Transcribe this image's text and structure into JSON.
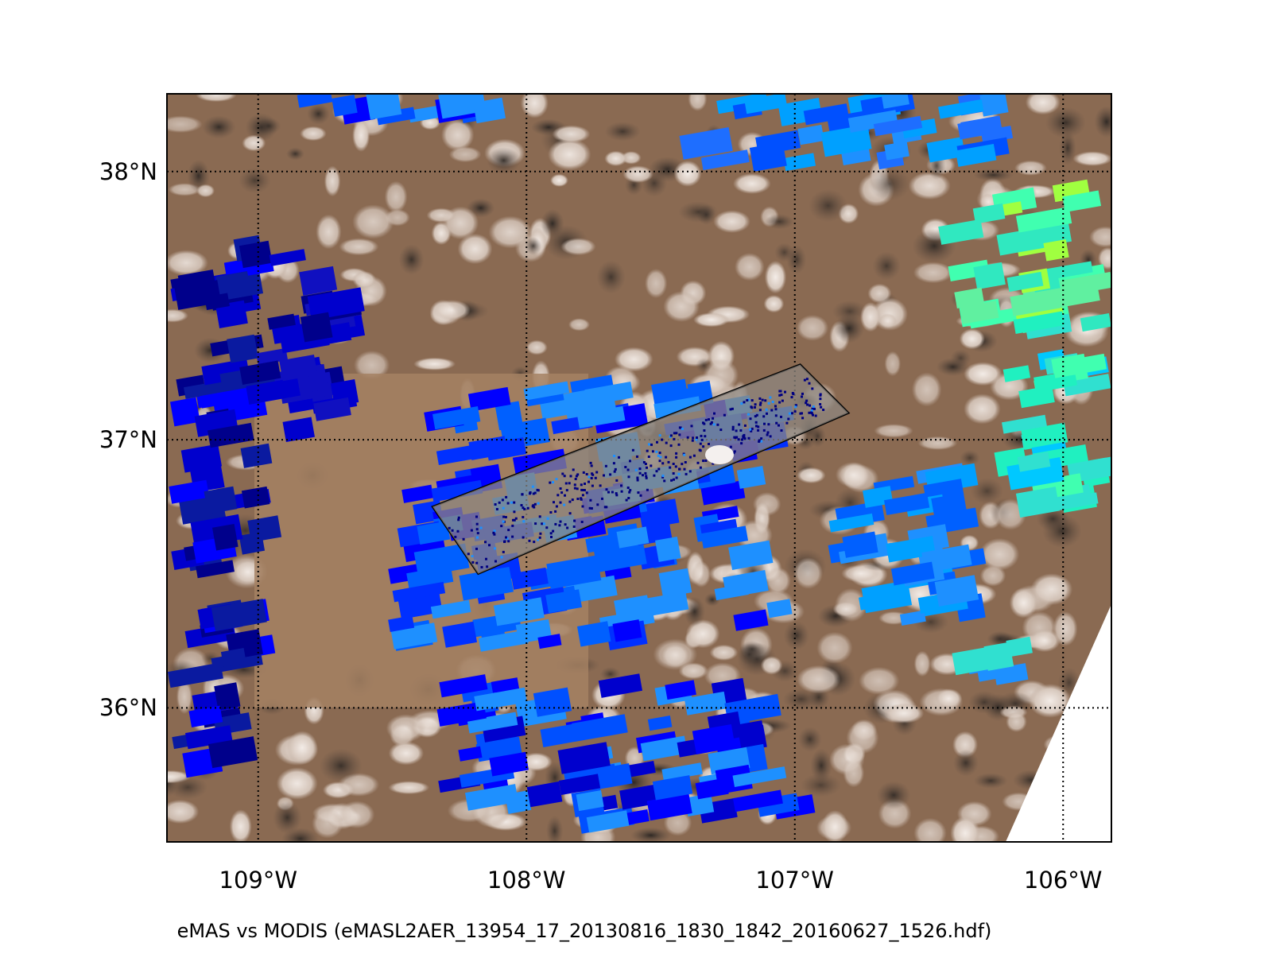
{
  "map": {
    "caption": "eMAS vs MODIS (eMASL2AER_13954_17_20130816_1830_1842_20160627_1526.hdf)",
    "extent": {
      "lon_min": -109.34,
      "lon_max": -105.82,
      "lat_min": 35.5,
      "lat_max": 38.29
    },
    "lon_gridlines": [
      {
        "lon": -109,
        "label": "109°W"
      },
      {
        "lon": -108,
        "label": "108°W"
      },
      {
        "lon": -107,
        "label": "107°W"
      },
      {
        "lon": -106,
        "label": "106°W"
      }
    ],
    "lat_gridlines": [
      {
        "lat": 38,
        "label": "38°N"
      },
      {
        "lat": 37,
        "label": "37°N"
      },
      {
        "lat": 36,
        "label": "36°N"
      }
    ],
    "gridline_style": "dotted",
    "flight_track_box": [
      {
        "lon": -108.35,
        "lat": 36.75
      },
      {
        "lon": -106.98,
        "lat": 37.28
      },
      {
        "lon": -106.8,
        "lat": 37.1
      },
      {
        "lon": -108.18,
        "lat": 36.5
      }
    ],
    "colors": {
      "frame": "#000000",
      "terrain_brown": "#8a6a52",
      "cloud_white": "#f2ebe6",
      "aerosol_low": "#0000c8",
      "aerosol_mid": "#1e90ff",
      "aerosol_high": "#40ffb0"
    }
  }
}
